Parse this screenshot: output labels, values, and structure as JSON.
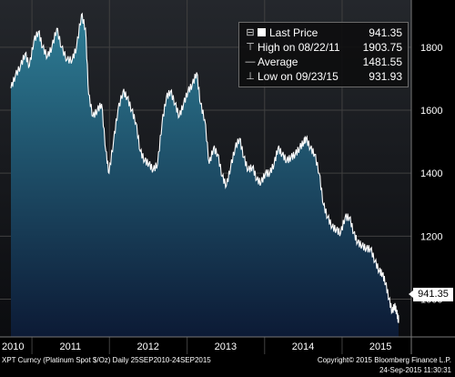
{
  "chart_data": {
    "type": "area",
    "title": "",
    "xlabel": "",
    "ylabel": "",
    "ylim": [
      880,
      1950
    ],
    "y_ticks": [
      1000,
      1200,
      1400,
      1600,
      1800
    ],
    "x_ticks": [
      "2010",
      "2011",
      "2012",
      "2013",
      "2014",
      "2015"
    ],
    "grid": true,
    "legend_position": "top-right",
    "series": [
      {
        "name": "Last Price",
        "x": [
          "2010-09-24",
          "2010-10-15",
          "2010-11-08",
          "2010-11-30",
          "2010-12-20",
          "2011-01-10",
          "2011-02-01",
          "2011-02-20",
          "2011-03-15",
          "2011-04-05",
          "2011-04-28",
          "2011-05-20",
          "2011-06-15",
          "2011-07-10",
          "2011-07-30",
          "2011-08-22",
          "2011-09-10",
          "2011-09-25",
          "2011-10-15",
          "2011-11-05",
          "2011-11-25",
          "2011-12-15",
          "2011-12-30",
          "2012-01-20",
          "2012-02-10",
          "2012-03-05",
          "2012-03-25",
          "2012-04-15",
          "2012-05-05",
          "2012-05-25",
          "2012-06-15",
          "2012-07-05",
          "2012-07-25",
          "2012-08-15",
          "2012-09-05",
          "2012-09-25",
          "2012-10-15",
          "2012-11-05",
          "2012-11-25",
          "2012-12-15",
          "2013-01-05",
          "2013-01-25",
          "2013-02-15",
          "2013-03-05",
          "2013-03-25",
          "2013-04-15",
          "2013-05-05",
          "2013-05-25",
          "2013-06-15",
          "2013-07-05",
          "2013-07-25",
          "2013-08-15",
          "2013-09-05",
          "2013-09-25",
          "2013-10-15",
          "2013-11-05",
          "2013-11-25",
          "2013-12-15",
          "2014-01-05",
          "2014-01-25",
          "2014-02-15",
          "2014-03-05",
          "2014-03-25",
          "2014-04-15",
          "2014-05-05",
          "2014-05-25",
          "2014-06-15",
          "2014-07-05",
          "2014-07-15",
          "2014-08-05",
          "2014-08-25",
          "2014-09-15",
          "2014-10-05",
          "2014-10-25",
          "2014-11-15",
          "2014-12-05",
          "2014-12-25",
          "2015-01-15",
          "2015-02-05",
          "2015-02-25",
          "2015-03-15",
          "2015-04-05",
          "2015-04-25",
          "2015-05-15",
          "2015-06-05",
          "2015-06-25",
          "2015-07-10",
          "2015-07-25",
          "2015-08-10",
          "2015-08-25",
          "2015-09-05",
          "2015-09-15",
          "2015-09-23",
          "2015-09-24"
        ],
        "values": [
          1670,
          1710,
          1740,
          1780,
          1740,
          1820,
          1850,
          1800,
          1770,
          1800,
          1860,
          1800,
          1760,
          1760,
          1800,
          1903.75,
          1860,
          1650,
          1580,
          1600,
          1620,
          1470,
          1400,
          1500,
          1600,
          1660,
          1640,
          1600,
          1560,
          1470,
          1440,
          1430,
          1410,
          1430,
          1560,
          1640,
          1660,
          1620,
          1580,
          1620,
          1660,
          1680,
          1720,
          1620,
          1570,
          1430,
          1480,
          1460,
          1390,
          1360,
          1420,
          1480,
          1510,
          1450,
          1410,
          1420,
          1380,
          1370,
          1400,
          1400,
          1430,
          1480,
          1460,
          1440,
          1450,
          1460,
          1480,
          1500,
          1510,
          1480,
          1460,
          1400,
          1300,
          1260,
          1230,
          1220,
          1210,
          1260,
          1260,
          1210,
          1180,
          1170,
          1160,
          1160,
          1120,
          1090,
          1080,
          1050,
          1000,
          960,
          980,
          960,
          931.93,
          941.35
        ]
      }
    ]
  },
  "legend": {
    "items": [
      {
        "label": "Last Price",
        "value": "941.35"
      },
      {
        "label": "High on 08/22/11",
        "value": "1903.75"
      },
      {
        "label": "Average",
        "value": "1481.55"
      },
      {
        "label": "Low on 09/23/15",
        "value": "931.93"
      }
    ]
  },
  "last_price_tag": "941.35",
  "footer": {
    "left": "XPT Curncy (Platinum Spot $/Oz)  Daily 25SEP2010-24SEP2015",
    "right": "Copyright© 2015 Bloomberg Finance L.P.",
    "timestamp": "24-Sep-2015 11:30:31"
  },
  "colors": {
    "background_top": "#0d0f14",
    "area_top": "#2e7e96",
    "area_bottom": "#0c1a35",
    "line": "#ffffff",
    "grid": "#404040"
  }
}
